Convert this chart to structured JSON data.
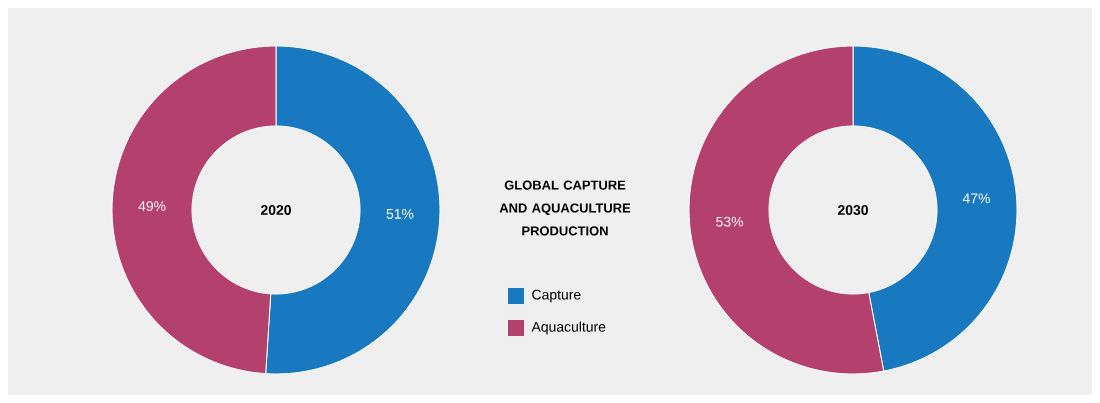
{
  "chart_data": [
    {
      "type": "donut",
      "title": "GLOBAL CAPTURE AND AQUACULTURE PRODUCTION",
      "categories": [
        "Capture",
        "Aquaculture"
      ],
      "values": [
        51,
        49
      ],
      "colors": [
        "#1878c0",
        "#b4406e"
      ],
      "value_labels": [
        "51%",
        "49%"
      ],
      "annotations": [
        "2020"
      ],
      "legend": "right"
    },
    {
      "type": "donut",
      "categories": [
        null,
        null
      ],
      "values": [
        47,
        53
      ],
      "colors": [
        "#1878c0",
        "#b4406e"
      ],
      "value_labels": [
        "47%",
        "53%"
      ],
      "annotations": [
        "2030"
      ]
    }
  ]
}
